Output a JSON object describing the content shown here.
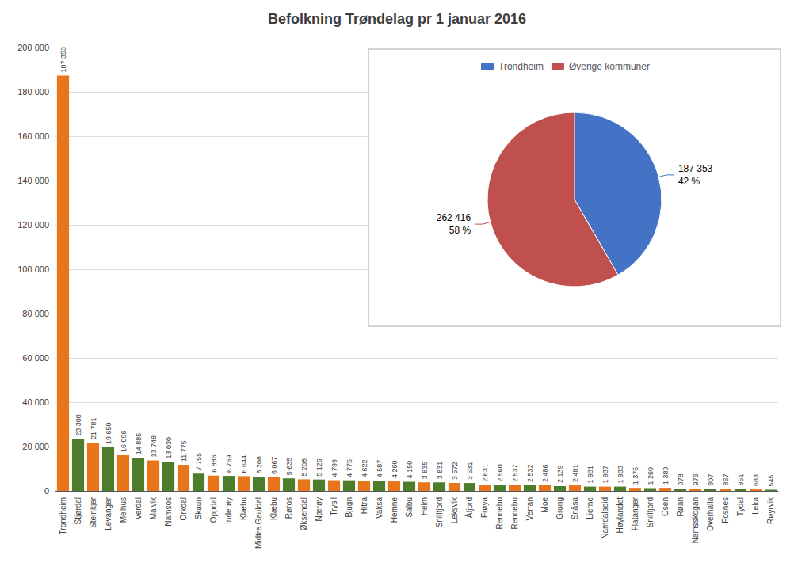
{
  "chart_data": [
    {
      "type": "bar",
      "title": "Befolkning Trøndelag pr 1 januar 2016",
      "categories": [
        "Trondheim",
        "Stjørdal",
        "Steinkjer",
        "Levanger",
        "Melhus",
        "Verdal",
        "Malvik",
        "Namsos",
        "Orkdal",
        "Skaun",
        "Oppdal",
        "Inderøy",
        "Klæbu",
        "Midtre Gauldal",
        "Klæbu",
        "Røros",
        "Øksendal",
        "Nærøy",
        "Trysil",
        "Bjugn",
        "Hitra",
        "Vaksa",
        "Hemne",
        "Salbu",
        "Heim",
        "Snillfjord",
        "Leksvik",
        "Åfjord",
        "Frøya",
        "Rennebo",
        "Rennebu",
        "Verran",
        "Moe",
        "Grong",
        "Snåsa",
        "Lierne",
        "Namdalseid",
        "Høylandet",
        "Flatanger",
        "Snillfjord",
        "Osen",
        "Røan",
        "Namsskogan",
        "Overhalla",
        "Fosnes",
        "Tydal",
        "Leka",
        "Røyrvik"
      ],
      "values": [
        187353,
        23308,
        21781,
        19650,
        16096,
        14885,
        13748,
        13030,
        11775,
        7755,
        6886,
        6769,
        6644,
        6208,
        6067,
        5635,
        5208,
        5126,
        4799,
        4775,
        4622,
        4587,
        4260,
        4150,
        3835,
        3831,
        3572,
        3531,
        2631,
        2560,
        2537,
        2532,
        2486,
        2139,
        2481,
        1931,
        1937,
        1933,
        1375,
        1260,
        1389,
        978,
        976,
        807,
        867,
        851,
        683,
        545
      ],
      "value_labels": [
        "187 353",
        "23 308",
        "21 781",
        "19 650",
        "16 096",
        "14 885",
        "13 748",
        "13 030",
        "11 775",
        "7 755",
        "6 886",
        "6 769",
        "6 644",
        "6 208",
        "6 067",
        "5 635",
        "5 208",
        "5 126",
        "4 799",
        "4 775",
        "4 622",
        "4 587",
        "4 260",
        "4 150",
        "3 835",
        "3 831",
        "3 572",
        "3 531",
        "2 631",
        "2 560",
        "2 537",
        "2 532",
        "2 486",
        "2 139",
        "2 481",
        "1 931",
        "1 937",
        "1 933",
        "1 375",
        "1 260",
        "1 389",
        "978",
        "976",
        "807",
        "867",
        "851",
        "683",
        "545"
      ],
      "colors": [
        "#E8751A",
        "#4D7C2A",
        "#E8751A",
        "#4D7C2A",
        "#E8751A",
        "#4D7C2A",
        "#E8751A",
        "#4D7C2A",
        "#E8751A",
        "#4D7C2A",
        "#E8751A",
        "#4D7C2A",
        "#E8751A",
        "#4D7C2A",
        "#E8751A",
        "#4D7C2A",
        "#E8751A",
        "#4D7C2A",
        "#E8751A",
        "#4D7C2A",
        "#E8751A",
        "#4D7C2A",
        "#E8751A",
        "#4D7C2A",
        "#E8751A",
        "#4D7C2A",
        "#E8751A",
        "#4D7C2A",
        "#E8751A",
        "#4D7C2A",
        "#E8751A",
        "#4D7C2A",
        "#E8751A",
        "#4D7C2A",
        "#E8751A",
        "#4D7C2A",
        "#E8751A",
        "#4D7C2A",
        "#E8751A",
        "#4D7C2A",
        "#E8751A",
        "#4D7C2A",
        "#E8751A",
        "#4D7C2A",
        "#E8751A",
        "#4D7C2A",
        "#E8751A",
        "#4D7C2A"
      ],
      "ylim": [
        0,
        200000
      ],
      "yticks": [
        0,
        {
          "value": 20000,
          "label": "20 000"
        },
        {
          "value": 40000,
          "label": "40 000"
        },
        {
          "value": 60000,
          "label": "60 000"
        },
        {
          "value": 80000,
          "label": "80 000"
        },
        {
          "value": 100000,
          "label": "100 000"
        },
        {
          "value": 120000,
          "label": "120 000"
        },
        {
          "value": 140000,
          "label": "140 000"
        },
        {
          "value": 160000,
          "label": "160 000"
        },
        {
          "value": 180000,
          "label": "180 000"
        },
        {
          "value": 200000,
          "label": "200 000"
        }
      ],
      "grid": true,
      "data_labels": true
    },
    {
      "type": "pie",
      "categories": [
        "Trondheim",
        "Øverige kommuner"
      ],
      "values": [
        187353,
        262416
      ],
      "value_labels": [
        "187 353",
        "262 416"
      ],
      "percentages": [
        42,
        58
      ],
      "percentage_labels": [
        "42 %",
        "58 %"
      ],
      "colors": [
        "#4472C4",
        "#C0504D"
      ],
      "data_labels": true,
      "legend": "top"
    }
  ]
}
